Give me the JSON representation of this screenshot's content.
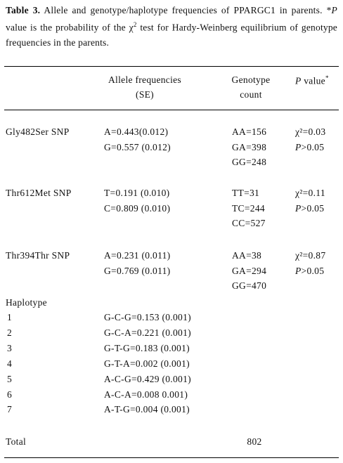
{
  "caption": {
    "label": "Table 3.",
    "text_1": "Allele and genotype/haplotype frequencies of PPARGC1 in parents. *",
    "p": "P",
    "text_2": " value is the probability of the χ",
    "sup": "2",
    "text_3": " test for Hardy-Weinberg equilibrium of genotype frequencies in the parents."
  },
  "table": {
    "header": {
      "allele": "Allele frequencies",
      "allele_se": "(SE)",
      "genotype": "Genotype",
      "genotype_2": "count",
      "p": "P",
      "p_text": " value",
      "p_mark": "*"
    },
    "snps": [
      {
        "name": "Gly482Ser SNP",
        "alleles": [
          "A=0.443(0.012)",
          "G=0.557 (0.012)"
        ],
        "genotypes": [
          "AA=156",
          "GA=398",
          "GG=248"
        ],
        "chi_square": "χ²=0.03",
        "p_symbol": "P",
        "p_rest": ">0.05"
      },
      {
        "name": "Thr612Met SNP",
        "alleles": [
          "T=0.191 (0.010)",
          "C=0.809 (0.010)"
        ],
        "genotypes": [
          "TT=31",
          "TC=244",
          "CC=527"
        ],
        "chi_square": "χ²=0.11",
        "p_symbol": "P",
        "p_rest": ">0.05"
      },
      {
        "name": "Thr394Thr SNP",
        "alleles": [
          "A=0.231 (0.011)",
          "G=0.769 (0.011)"
        ],
        "genotypes": [
          "AA=38",
          "GA=294",
          "GG=470"
        ],
        "chi_square": "χ²=0.87",
        "p_symbol": "P",
        "p_rest": ">0.05"
      }
    ],
    "haplotype_label": "Haplotype",
    "haplotypes": [
      [
        "1",
        "G-C-G=0.153 (0.001)"
      ],
      [
        "2",
        "G-C-A=0.221 (0.001)"
      ],
      [
        "3",
        "G-T-G=0.183 (0.001)"
      ],
      [
        "4",
        "G-T-A=0.002 (0.001)"
      ],
      [
        "5",
        "A-C-G=0.429 (0.001)"
      ],
      [
        "6",
        "A-C-A=0.008 0.001)"
      ],
      [
        "7",
        "A-T-G=0.004 (0.001)"
      ]
    ],
    "total_label": "Total",
    "total": "802"
  }
}
